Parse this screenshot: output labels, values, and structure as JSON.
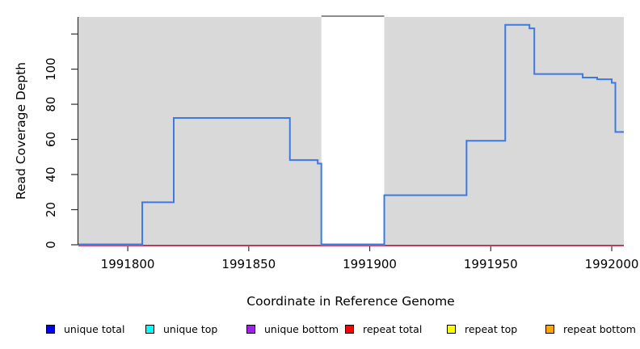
{
  "chart_data": {
    "type": "line",
    "subtype": "step",
    "title": "",
    "xlabel": "Coordinate in Reference Genome",
    "ylabel": "Read Coverage Depth",
    "xlim": [
      1991779.6,
      1992005.0
    ],
    "ylim": [
      0,
      129.7
    ],
    "x_ticks": [
      1991800,
      1991850,
      1991900,
      1991950,
      1992000
    ],
    "x_tick_labels": [
      "1991800",
      "1991850",
      "1991900",
      "1991950",
      "1992000"
    ],
    "y_ticks": [
      0,
      20,
      40,
      60,
      80,
      100,
      120
    ],
    "y_tick_labels": [
      "0",
      "20",
      "40",
      "60",
      "80",
      "100",
      ""
    ],
    "grid": false,
    "panel_bg": "#d9d9d9",
    "highlight_region": {
      "x0": 1991880,
      "x1": 1991906,
      "color": "#ffffff",
      "top_border_color": "#8c8c8c",
      "meaning": "uncovered gap region"
    },
    "series": [
      {
        "name": "repeat total",
        "color": "#d84f6e",
        "line_width": 1.5,
        "step_points": [
          [
            1991779.6,
            0
          ],
          [
            1992005.0,
            0
          ]
        ]
      },
      {
        "name": "unique total",
        "color": "#3d79e3",
        "line_width": 2,
        "step_points": [
          [
            1991779.6,
            0
          ],
          [
            1991806,
            24
          ],
          [
            1991819,
            72
          ],
          [
            1991867,
            48
          ],
          [
            1991878.5,
            46
          ],
          [
            1991880,
            0
          ],
          [
            1991906,
            28
          ],
          [
            1991940,
            59
          ],
          [
            1991956,
            125
          ],
          [
            1991966,
            123
          ],
          [
            1991968,
            97
          ],
          [
            1991988,
            95
          ],
          [
            1991994,
            94
          ],
          [
            1992000,
            92
          ],
          [
            1992001.5,
            64
          ],
          [
            1992005,
            64
          ]
        ]
      }
    ],
    "legend_position": "bottom"
  },
  "legend": {
    "items": [
      {
        "label": "unique total",
        "color": "#0000ee"
      },
      {
        "label": "unique top",
        "color": "#00ffff"
      },
      {
        "label": "unique bottom",
        "color": "#a020f0"
      },
      {
        "label": "repeat total",
        "color": "#ff0000"
      },
      {
        "label": "repeat top",
        "color": "#ffff00"
      },
      {
        "label": "repeat bottom",
        "color": "#ffa500"
      }
    ]
  }
}
